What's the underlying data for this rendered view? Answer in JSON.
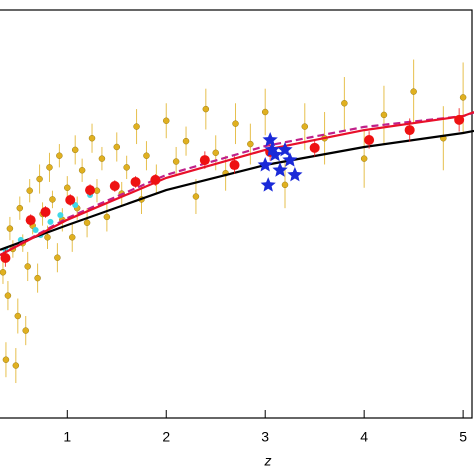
{
  "chart_data": {
    "type": "scatter",
    "xlabel": "z",
    "xlim": [
      0.32,
      5.11
    ],
    "ylim": [
      36,
      50
    ],
    "xticks": [
      1,
      2,
      3,
      4,
      5
    ],
    "series": [
      {
        "marker": "circle",
        "color": "#e0b020",
        "x": [
          0.35,
          0.4,
          0.42,
          0.45,
          0.5,
          0.52,
          0.55,
          0.6,
          0.62,
          0.65,
          0.7,
          0.72,
          0.75,
          0.8,
          0.82,
          0.85,
          0.9,
          0.92,
          0.95,
          1.0,
          1.05,
          1.08,
          1.1,
          1.15,
          1.2,
          1.25,
          1.3,
          1.35,
          1.4,
          1.5,
          1.55,
          1.6,
          1.7,
          1.75,
          1.8,
          1.9,
          2.0,
          2.1,
          2.2,
          2.3,
          2.4,
          2.5,
          2.6,
          2.7,
          2.85,
          3.0,
          3.2,
          3.4,
          3.6,
          3.8,
          4.0,
          4.2,
          4.5,
          4.8,
          5.0,
          0.38,
          0.58,
          0.48
        ],
        "values": [
          41.0,
          40.2,
          42.5,
          41.8,
          39.5,
          43.2,
          42.0,
          41.2,
          43.8,
          42.6,
          40.8,
          44.2,
          43.0,
          42.2,
          44.6,
          43.5,
          41.5,
          45.0,
          42.8,
          43.9,
          42.2,
          45.2,
          43.2,
          44.5,
          42.7,
          45.6,
          43.8,
          44.9,
          42.9,
          45.3,
          43.7,
          44.6,
          46.0,
          43.5,
          45.0,
          44.2,
          46.2,
          44.8,
          45.5,
          43.6,
          46.6,
          45.1,
          44.4,
          46.1,
          45.4,
          46.5,
          44.0,
          46.0,
          45.6,
          46.8,
          44.9,
          46.4,
          47.2,
          45.6,
          47.0,
          38.0,
          39.0,
          37.8
        ],
        "errors": [
          0.4,
          0.5,
          0.4,
          0.3,
          0.6,
          0.4,
          0.3,
          0.5,
          0.4,
          0.3,
          0.5,
          0.5,
          0.4,
          0.4,
          0.5,
          0.3,
          0.5,
          0.4,
          0.4,
          0.4,
          0.5,
          0.5,
          0.4,
          0.4,
          0.5,
          0.5,
          0.4,
          0.4,
          0.5,
          0.5,
          0.4,
          0.4,
          0.6,
          0.5,
          0.5,
          0.5,
          0.6,
          0.5,
          0.5,
          0.6,
          0.7,
          0.6,
          0.6,
          0.7,
          0.7,
          0.8,
          0.8,
          0.8,
          0.9,
          0.9,
          1.0,
          1.0,
          1.1,
          1.1,
          1.2,
          0.6,
          0.5,
          0.6
        ]
      },
      {
        "marker": "circle",
        "color": "#40d8e8",
        "x": [
          0.375,
          0.53,
          0.68,
          0.83,
          0.93,
          1.08,
          1.23,
          0.73
        ],
        "values": [
          41.77,
          42.11,
          42.45,
          42.73,
          42.96,
          43.31,
          43.65,
          42.28
        ]
      },
      {
        "marker": "line",
        "color": "#000000",
        "dash": false,
        "x": [
          0.32,
          1,
          2,
          3,
          4,
          5,
          5.11
        ],
        "values": [
          41.77,
          42.62,
          43.82,
          44.68,
          45.3,
          45.78,
          45.85
        ]
      },
      {
        "marker": "line",
        "color": "#c0208a",
        "dash": true,
        "x": [
          0.32,
          1,
          2,
          3,
          4,
          5,
          5.11
        ],
        "values": [
          41.59,
          42.86,
          44.34,
          45.33,
          45.99,
          46.36,
          46.48
        ]
      },
      {
        "marker": "line",
        "color": "#e8102a",
        "dash": false,
        "x": [
          0.32,
          1,
          2,
          3,
          4,
          5,
          5.11
        ],
        "values": [
          41.59,
          42.8,
          44.24,
          45.2,
          45.88,
          46.36,
          46.5
        ]
      },
      {
        "marker": "circle",
        "color": "#ee1111",
        "x": [
          0.375,
          0.63,
          0.78,
          1.03,
          1.23,
          1.48,
          1.69,
          1.89,
          2.39,
          2.69,
          3.05,
          3.5,
          4.05,
          4.46,
          4.96
        ],
        "values": [
          41.49,
          42.79,
          43.07,
          43.48,
          43.82,
          43.96,
          44.1,
          44.17,
          44.85,
          44.68,
          45.13,
          45.27,
          45.54,
          45.88,
          46.23
        ],
        "errors": [
          0.3,
          0.2,
          0.2,
          0.2,
          0.2,
          0.2,
          0.2,
          0.2,
          0.3,
          0.3,
          0.3,
          0.3,
          0.3,
          0.4,
          0.4
        ]
      },
      {
        "marker": "star",
        "color": "#1a2ad8",
        "x": [
          3.05,
          3.2,
          3.1,
          3.0,
          3.25,
          3.15,
          3.03,
          3.3,
          3.07
        ],
        "values": [
          45.54,
          45.2,
          45.03,
          44.68,
          44.85,
          44.5,
          43.99,
          44.34,
          45.2
        ]
      }
    ]
  }
}
